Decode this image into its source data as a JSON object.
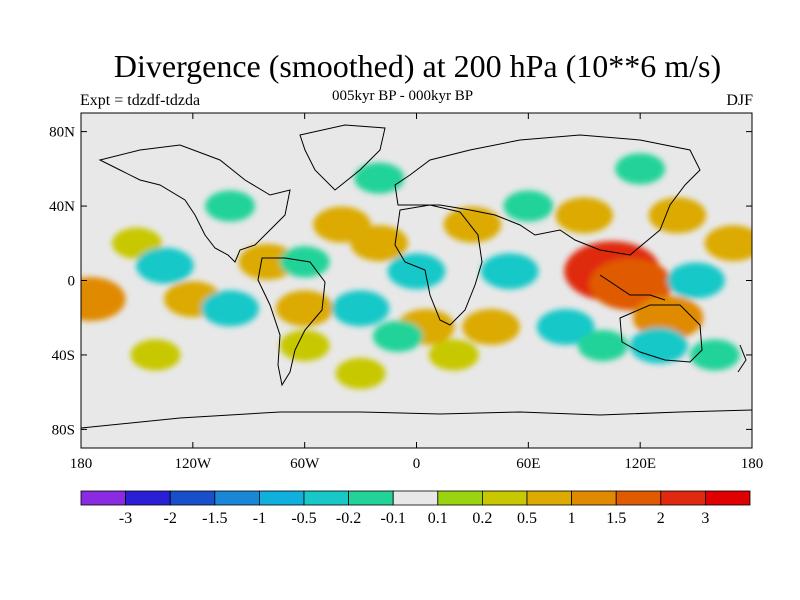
{
  "header": {
    "title": "Divergence (smoothed) at 200 hPa (10**6 m/s)",
    "expt": "Expt = tdzdf-tdzda",
    "subtitle": "005kyr BP - 000kyr BP",
    "season": "DJF"
  },
  "map": {
    "lon_labels": [
      "180",
      "120W",
      "60W",
      "0",
      "60E",
      "120E",
      "180"
    ],
    "lat_labels": [
      "80N",
      "40N",
      "0",
      "40S",
      "80S"
    ],
    "background_color": "#e8e8e8"
  },
  "chart_data": {
    "type": "heatmap",
    "title": "Divergence (smoothed) at 200 hPa (10**6 m/s)",
    "xlabel": "",
    "ylabel": "",
    "xlim": [
      -180,
      180
    ],
    "ylim": [
      -90,
      90
    ],
    "x_ticks": [
      -180,
      -120,
      -60,
      0,
      60,
      120,
      180
    ],
    "y_ticks": [
      80,
      40,
      0,
      -40,
      -80
    ],
    "colorbar": {
      "labels": [
        "-3",
        "-2",
        "-1.5",
        "-1",
        "-0.5",
        "-0.2",
        "-0.1",
        "0.1",
        "0.2",
        "0.5",
        "1",
        "1.5",
        "2",
        "3"
      ],
      "colors": [
        "#8a2be2",
        "#2a1fd4",
        "#1a4fcc",
        "#1a86d8",
        "#0fb0dd",
        "#18c8c8",
        "#22d399",
        "#e8e8e8",
        "#9ad410",
        "#c8c800",
        "#dcaa00",
        "#e08a00",
        "#e05a00",
        "#e02a10",
        "#e00000"
      ]
    },
    "features": [
      {
        "lon": 105,
        "lat": 5,
        "value": 2.0
      },
      {
        "lon": 115,
        "lat": -2,
        "value": 1.5
      },
      {
        "lon": 135,
        "lat": -20,
        "value": 1.0
      },
      {
        "lon": 170,
        "lat": 20,
        "value": 0.5
      },
      {
        "lon": 140,
        "lat": 35,
        "value": 0.5
      },
      {
        "lon": 90,
        "lat": 35,
        "value": 0.5
      },
      {
        "lon": 30,
        "lat": 30,
        "value": 0.5
      },
      {
        "lon": 40,
        "lat": -25,
        "value": 0.5
      },
      {
        "lon": 5,
        "lat": -25,
        "value": 0.5
      },
      {
        "lon": -20,
        "lat": 20,
        "value": 0.5
      },
      {
        "lon": -40,
        "lat": 30,
        "value": 0.5
      },
      {
        "lon": -60,
        "lat": -15,
        "value": 0.5
      },
      {
        "lon": -80,
        "lat": 10,
        "value": 0.5
      },
      {
        "lon": -120,
        "lat": -10,
        "value": 0.5
      },
      {
        "lon": -175,
        "lat": -10,
        "value": 1.0
      },
      {
        "lon": -150,
        "lat": 20,
        "value": 0.2
      },
      {
        "lon": -140,
        "lat": -40,
        "value": 0.2
      },
      {
        "lon": -60,
        "lat": -35,
        "value": 0.2
      },
      {
        "lon": 20,
        "lat": -40,
        "value": 0.2
      },
      {
        "lon": -30,
        "lat": -50,
        "value": 0.2
      },
      {
        "lon": 0,
        "lat": 5,
        "value": -0.5
      },
      {
        "lon": 50,
        "lat": 5,
        "value": -0.5
      },
      {
        "lon": 80,
        "lat": -25,
        "value": -0.5
      },
      {
        "lon": 150,
        "lat": 0,
        "value": -0.5
      },
      {
        "lon": 130,
        "lat": -35,
        "value": -0.5
      },
      {
        "lon": -100,
        "lat": -15,
        "value": -0.5
      },
      {
        "lon": -135,
        "lat": 8,
        "value": -0.5
      },
      {
        "lon": -30,
        "lat": -15,
        "value": -0.5
      },
      {
        "lon": -100,
        "lat": 40,
        "value": -0.2
      },
      {
        "lon": 60,
        "lat": 40,
        "value": -0.2
      },
      {
        "lon": -20,
        "lat": 55,
        "value": -0.2
      },
      {
        "lon": 120,
        "lat": 60,
        "value": -0.2
      },
      {
        "lon": -60,
        "lat": 10,
        "value": -0.2
      },
      {
        "lon": 160,
        "lat": -40,
        "value": -0.2
      },
      {
        "lon": -10,
        "lat": -30,
        "value": -0.2
      },
      {
        "lon": 100,
        "lat": -35,
        "value": -0.2
      }
    ]
  }
}
